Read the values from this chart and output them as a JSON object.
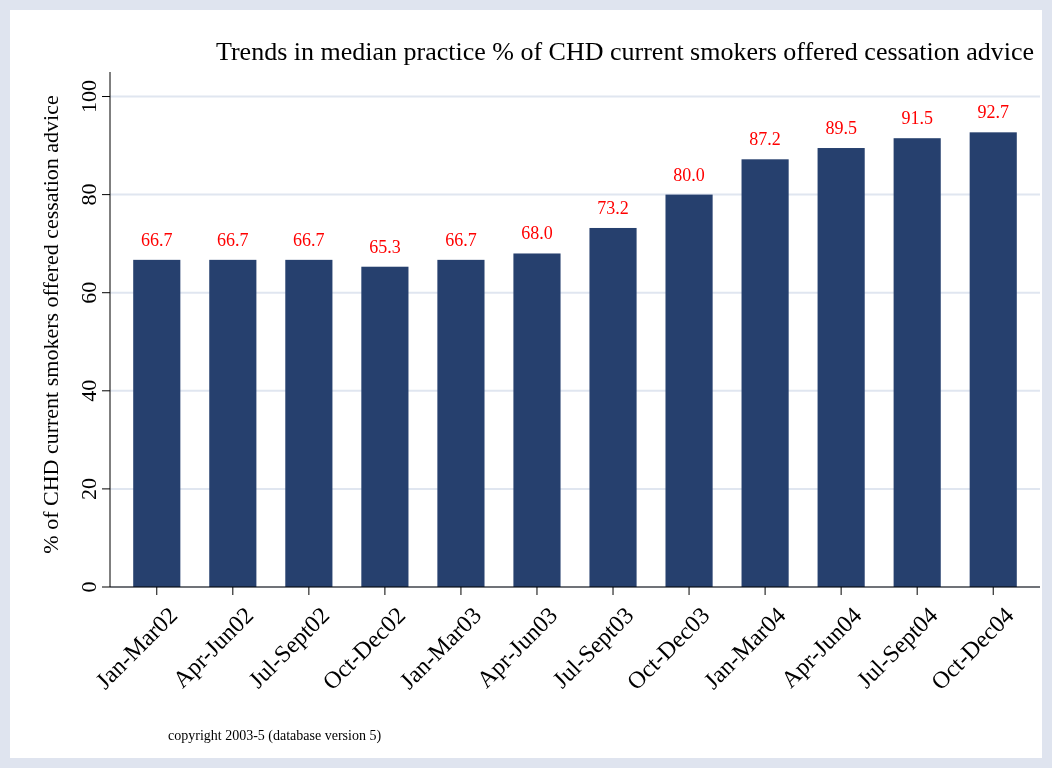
{
  "chart_data": {
    "type": "bar",
    "title": "Trends in median practice  % of CHD current smokers offered cessation advice",
    "ylabel": "% of CHD current smokers offered cessation advice",
    "categories": [
      "Jan-Mar02",
      "Apr-Jun02",
      "Jul-Sept02",
      "Oct-Dec02",
      "Jan-Mar03",
      "Apr-Jun03",
      "Jul-Sept03",
      "Oct-Dec03",
      "Jan-Mar04",
      "Apr-Jun04",
      "Jul-Sept04",
      "Oct-Dec04"
    ],
    "values": [
      66.7,
      66.7,
      66.7,
      65.3,
      66.7,
      68.0,
      73.2,
      80.0,
      87.2,
      89.5,
      91.5,
      92.7
    ],
    "value_labels": [
      "66.7",
      "66.7",
      "66.7",
      "65.3",
      "66.7",
      "68.0",
      "73.2",
      "80.0",
      "87.2",
      "89.5",
      "91.5",
      "92.7"
    ],
    "color": "#26406e",
    "ylim": [
      0,
      105
    ],
    "yticks": [
      0,
      20,
      40,
      60,
      80,
      100
    ],
    "grid": "y",
    "annotations": [
      "copyright 2003-5 (database version 5)"
    ]
  }
}
